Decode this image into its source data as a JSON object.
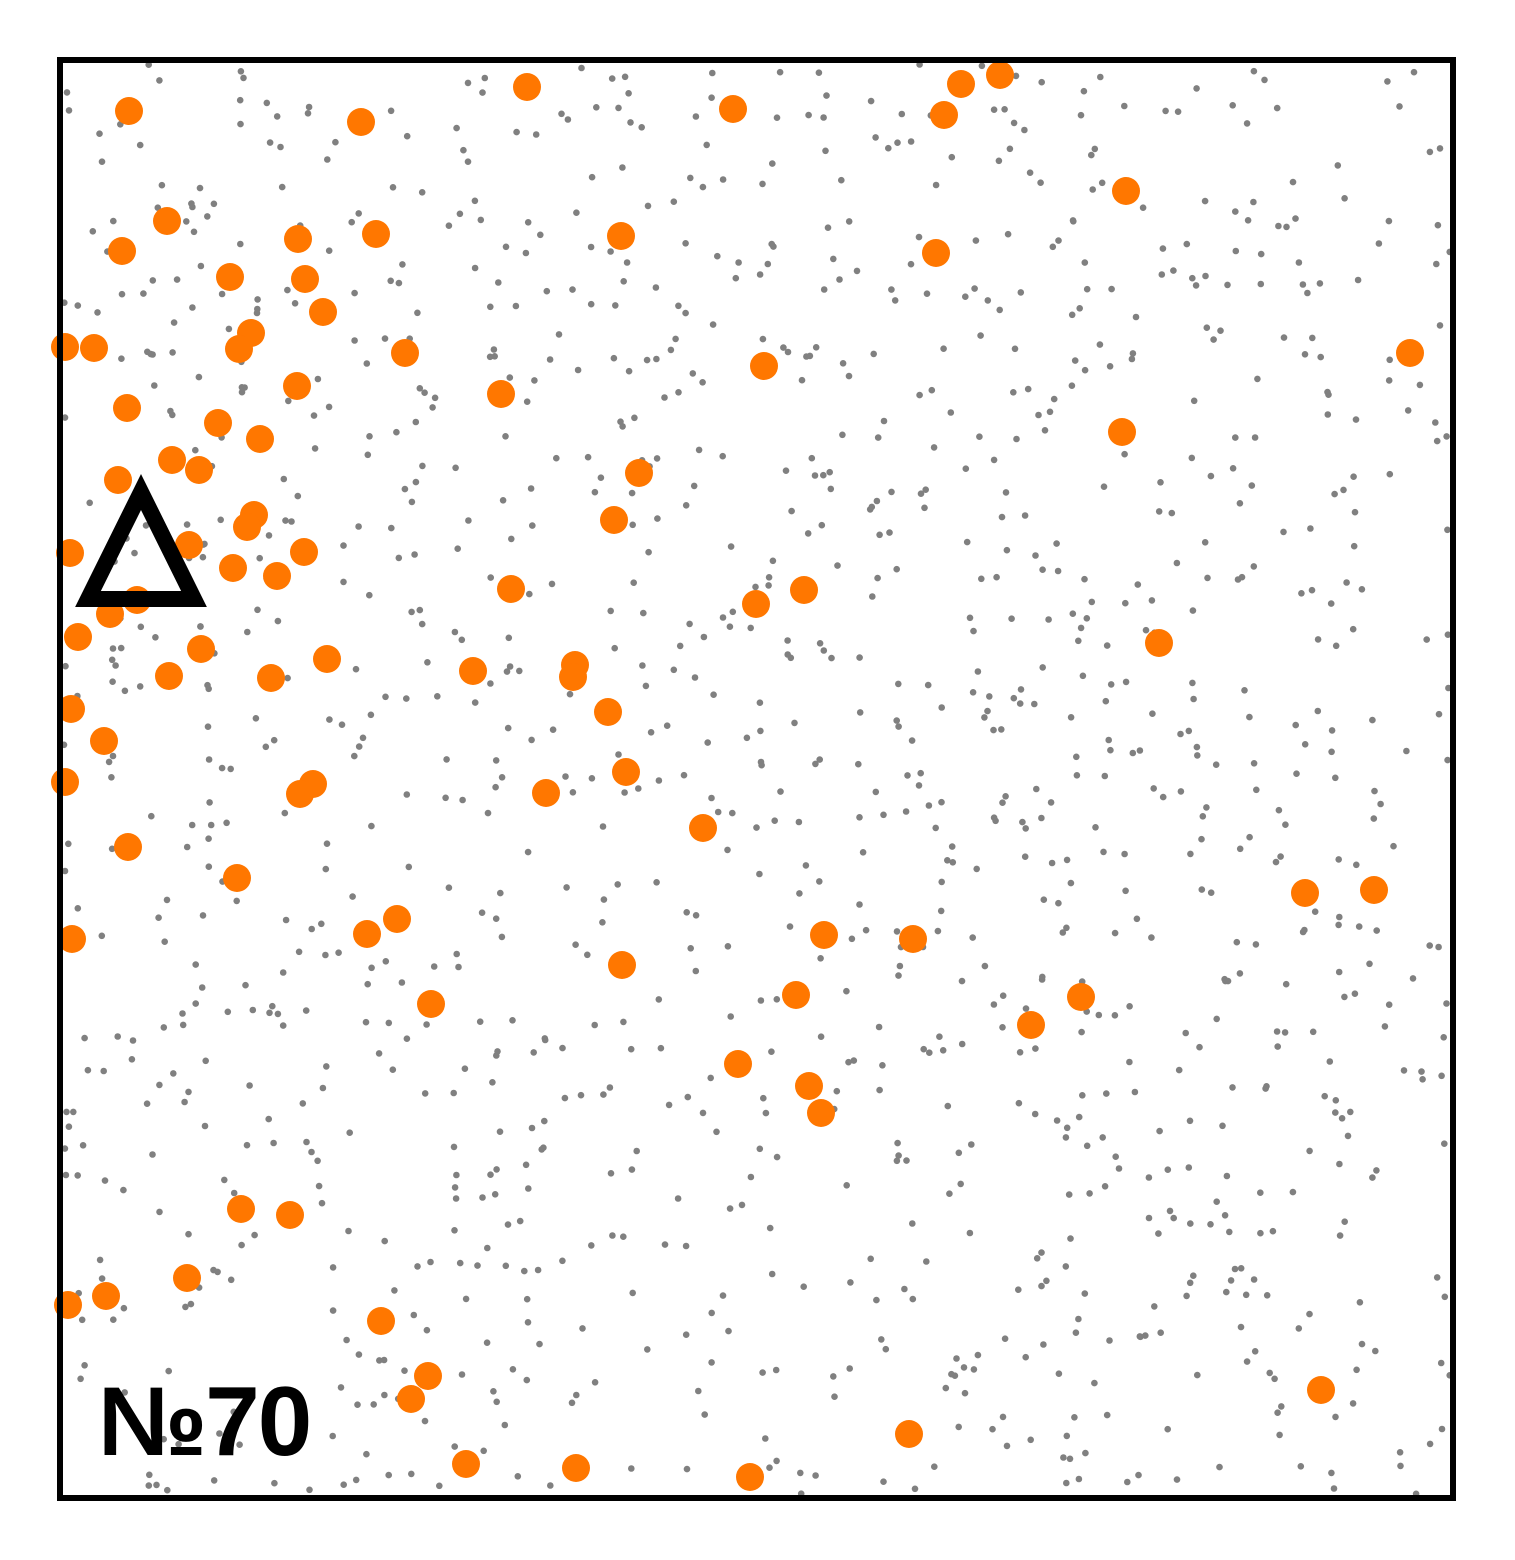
{
  "label": {
    "text": "№70"
  },
  "colors": {
    "frame": "#000000",
    "background": "#ffffff",
    "dot": "#808080",
    "highlight": "#ff7700",
    "marker": "#000000"
  },
  "marker": {
    "shape": "triangle",
    "fill": "none"
  },
  "dots": {
    "count": 1300,
    "seed": 7
  },
  "highlights": {
    "count": 113
  }
}
